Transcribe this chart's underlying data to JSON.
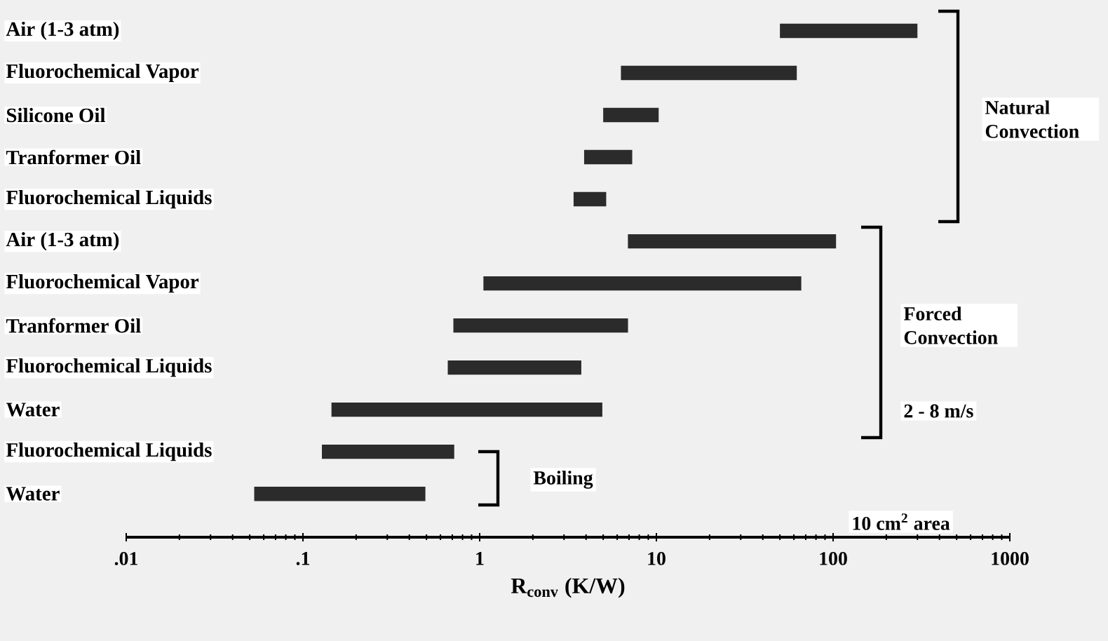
{
  "chart_data": {
    "type": "bar",
    "orientation": "horizontal",
    "log": "x",
    "categories": [
      "Air (1-3 atm)",
      "Fluorochemical Vapor",
      "Silicone Oil",
      "Tranformer Oil",
      "Fluorochemical Liquids",
      "Air (1-3 atm)",
      "Fluorochemical Vapor",
      "Tranformer Oil",
      "Fluorochemical Liquids",
      "Water",
      "Fluorochemical Liquids",
      "Water"
    ],
    "base": [
      50,
      6.3,
      5.0,
      3.9,
      3.4,
      6.9,
      1.05,
      0.71,
      0.66,
      0.145,
      0.128,
      0.053
    ],
    "values": [
      250,
      56,
      5.3,
      3.4,
      1.8,
      97,
      65,
      6.2,
      3.1,
      4.8,
      0.59,
      0.44
    ],
    "color": "#2b2b2b",
    "xlim": [
      0.01,
      1000
    ],
    "xticks": [
      {
        "value": 0.01,
        "label": ".01"
      },
      {
        "value": 0.1,
        "label": ".1"
      },
      1,
      10,
      100,
      1000
    ],
    "xlabel": "R$_{conv}$ (K/W)",
    "annotations": [
      "Natural Convection",
      "Forced Convection",
      "2 - 8 m/s",
      "Boiling",
      "10 cm$^{2}$ area"
    ]
  }
}
